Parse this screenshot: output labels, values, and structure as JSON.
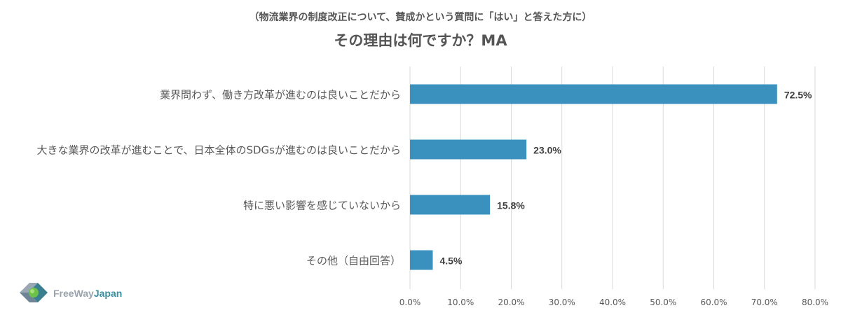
{
  "header": {
    "subtitle": "（物流業界の制度改正について、賛成かという質問に「はい」と答えた方に）",
    "title": "その理由は何ですか？MA"
  },
  "logo": {
    "part1": "FreeWay",
    "part2": "Japan"
  },
  "chart_data": {
    "type": "bar",
    "orientation": "horizontal",
    "title": "その理由は何ですか？MA",
    "subtitle": "（物流業界の制度改正について、賛成かという質問に「はい」と答えた方に）",
    "categories": [
      "業界問わず、働き方改革が進むのは良いことだから",
      "大きな業界の改革が進むことで、日本全体のSDGsが進むのは良いことだから",
      "特に悪い影響を感じていないから",
      "その他（自由回答）"
    ],
    "values": [
      72.5,
      23.0,
      15.8,
      4.5
    ],
    "value_labels": [
      "72.5%",
      "23.0%",
      "15.8%",
      "4.5%"
    ],
    "xlim": [
      0,
      80
    ],
    "ticks": [
      0,
      10,
      20,
      30,
      40,
      50,
      60,
      70,
      80
    ],
    "tick_labels": [
      "0.0%",
      "10.0%",
      "20.0%",
      "30.0%",
      "40.0%",
      "50.0%",
      "60.0%",
      "70.0%",
      "80.0%"
    ],
    "grid": true,
    "colors": {
      "bar": "#3a91be",
      "grid": "#d9d9d9",
      "text": "#595959"
    }
  }
}
